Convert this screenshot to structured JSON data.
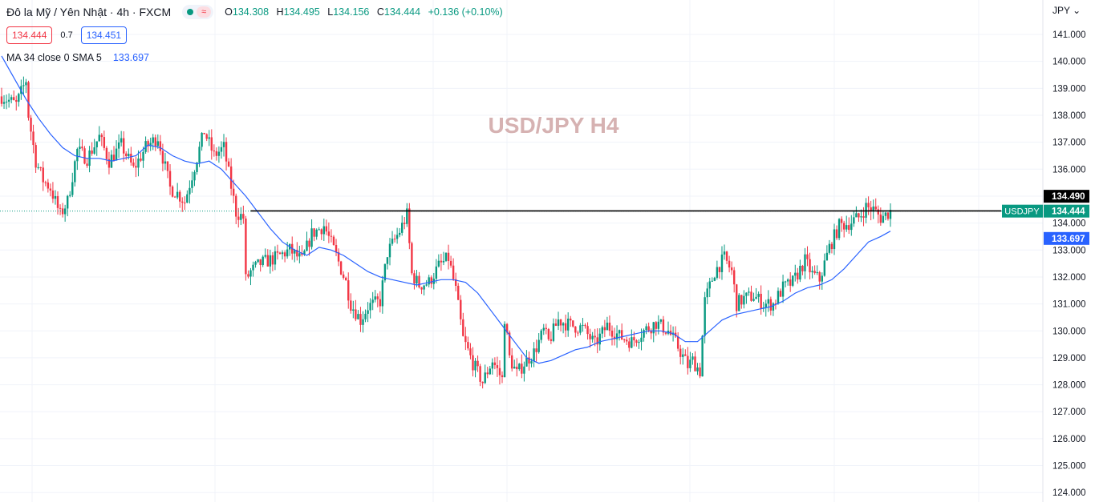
{
  "header": {
    "symbol_title": "Đô la Mỹ / Yên Nhật · 4h · FXCM",
    "delayed_glyph": "≈",
    "ohlc": {
      "o_label": "O",
      "o_value": "134.308",
      "h_label": "H",
      "h_value": "134.495",
      "l_label": "L",
      "l_value": "134.156",
      "c_label": "C",
      "c_value": "134.444",
      "change": "+0.136 (+0.10%)"
    },
    "sell_price": "134.444",
    "spread": "0.7",
    "buy_price": "134.451",
    "indicator_label": "MA 34 close 0 SMA 5",
    "indicator_value": "133.697",
    "currency": "JPY",
    "currency_chevron": "⌄"
  },
  "colors": {
    "up": "#089981",
    "down": "#f23645",
    "ma": "#2962ff",
    "grid": "#f0f3fa",
    "watermark": "#d6b2b2",
    "resistance": "#000000"
  },
  "chart_data": {
    "type": "candlestick",
    "title": "USD/JPY H4",
    "symbol": "USDJPY",
    "timeframe": "4h",
    "y_axis": {
      "side": "right",
      "ticks": [
        141,
        140,
        139,
        138,
        137,
        136,
        135,
        134,
        133,
        132,
        131,
        130,
        129,
        128,
        127,
        126,
        125,
        124
      ],
      "tick_labels": [
        "141.000",
        "140.000",
        "139.000",
        "138.000",
        "137.000",
        "136.000",
        "",
        "134.000",
        "133.000",
        "132.000",
        "131.000",
        "130.000",
        "129.000",
        "128.000",
        "127.000",
        "126.000",
        "125.000",
        "124.000"
      ],
      "range": [
        123.8,
        141.7
      ]
    },
    "grid": true,
    "resistance_level": 134.45,
    "bar_count": 275,
    "close_path": [
      [
        0,
        138.7
      ],
      [
        6,
        138.4
      ],
      [
        10,
        139.3
      ],
      [
        11,
        138.0
      ],
      [
        14,
        136.3
      ],
      [
        17,
        135.6
      ],
      [
        20,
        135.3
      ],
      [
        24,
        134.3
      ],
      [
        27,
        134.8
      ],
      [
        31,
        136.7
      ],
      [
        35,
        136.4
      ],
      [
        40,
        137.2
      ],
      [
        44,
        136.3
      ],
      [
        49,
        136.9
      ],
      [
        54,
        136.0
      ],
      [
        59,
        136.8
      ],
      [
        64,
        137.2
      ],
      [
        69,
        135.3
      ],
      [
        72,
        135.1
      ],
      [
        75,
        134.8
      ],
      [
        79,
        136.1
      ],
      [
        83,
        137.4
      ],
      [
        87,
        136.5
      ],
      [
        91,
        136.8
      ],
      [
        96,
        134.4
      ],
      [
        99,
        134.2
      ],
      [
        100,
        131.9
      ],
      [
        102,
        132.2
      ],
      [
        106,
        132.5
      ],
      [
        112,
        132.7
      ],
      [
        118,
        133.0
      ],
      [
        123,
        132.6
      ],
      [
        127,
        133.6
      ],
      [
        132,
        133.9
      ],
      [
        137,
        132.8
      ],
      [
        141,
        131.8
      ],
      [
        143,
        131.0
      ],
      [
        147,
        130.4
      ],
      [
        150,
        130.9
      ],
      [
        155,
        131.1
      ],
      [
        158,
        132.9
      ],
      [
        163,
        133.7
      ],
      [
        166,
        134.3
      ],
      [
        168,
        132.1
      ],
      [
        171,
        131.7
      ],
      [
        175,
        131.8
      ],
      [
        179,
        132.4
      ],
      [
        183,
        132.7
      ],
      [
        186,
        131.5
      ],
      [
        189,
        129.7
      ],
      [
        193,
        128.8
      ],
      [
        197,
        128.1
      ],
      [
        201,
        128.9
      ],
      [
        205,
        128.2
      ],
      [
        206,
        130.5
      ],
      [
        208,
        129.0
      ],
      [
        211,
        128.4
      ],
      [
        214,
        128.8
      ],
      [
        218,
        129.2
      ],
      [
        222,
        130.0
      ],
      [
        224,
        129.6
      ],
      [
        228,
        130.4
      ],
      [
        233,
        130.2
      ],
      [
        238,
        130.1
      ],
      [
        243,
        129.5
      ],
      [
        248,
        130.2
      ],
      [
        253,
        129.8
      ],
      [
        258,
        129.6
      ],
      [
        263,
        130.0
      ],
      [
        268,
        130.3
      ],
      [
        273,
        130.0
      ],
      [
        277,
        129.4
      ],
      [
        281,
        128.7
      ],
      [
        283,
        128.9
      ],
      [
        286,
        128.5
      ],
      [
        288,
        131.1
      ],
      [
        292,
        132.2
      ],
      [
        296,
        132.7
      ],
      [
        299,
        132.2
      ],
      [
        301,
        131.0
      ],
      [
        304,
        131.2
      ],
      [
        308,
        131.3
      ],
      [
        312,
        131.0
      ],
      [
        316,
        131.0
      ],
      [
        320,
        131.6
      ],
      [
        324,
        131.8
      ],
      [
        329,
        132.6
      ],
      [
        332,
        132.1
      ],
      [
        335,
        131.9
      ],
      [
        339,
        133.1
      ],
      [
        343,
        133.9
      ],
      [
        347,
        134.0
      ],
      [
        351,
        134.2
      ],
      [
        354,
        134.6
      ],
      [
        357,
        134.5
      ],
      [
        360,
        134.2
      ],
      [
        362,
        134.3
      ],
      [
        364,
        134.45
      ]
    ],
    "ma_path": [
      [
        0,
        140.2
      ],
      [
        5,
        139.4
      ],
      [
        10,
        138.6
      ],
      [
        15,
        137.9
      ],
      [
        20,
        137.3
      ],
      [
        25,
        136.8
      ],
      [
        30,
        136.5
      ],
      [
        35,
        136.4
      ],
      [
        40,
        136.4
      ],
      [
        45,
        136.3
      ],
      [
        50,
        136.4
      ],
      [
        55,
        136.5
      ],
      [
        60,
        136.9
      ],
      [
        65,
        136.8
      ],
      [
        70,
        136.5
      ],
      [
        75,
        136.3
      ],
      [
        80,
        136.2
      ],
      [
        85,
        136.3
      ],
      [
        90,
        136.0
      ],
      [
        95,
        135.5
      ],
      [
        100,
        135.0
      ],
      [
        105,
        134.4
      ],
      [
        110,
        133.8
      ],
      [
        115,
        133.3
      ],
      [
        120,
        133.0
      ],
      [
        125,
        132.8
      ],
      [
        130,
        133.1
      ],
      [
        135,
        133.0
      ],
      [
        140,
        132.8
      ],
      [
        145,
        132.5
      ],
      [
        150,
        132.2
      ],
      [
        155,
        132.0
      ],
      [
        160,
        131.9
      ],
      [
        165,
        131.8
      ],
      [
        170,
        131.7
      ],
      [
        175,
        131.8
      ],
      [
        180,
        131.9
      ],
      [
        185,
        131.9
      ],
      [
        190,
        131.8
      ],
      [
        195,
        131.4
      ],
      [
        200,
        130.8
      ],
      [
        205,
        130.2
      ],
      [
        210,
        129.6
      ],
      [
        215,
        129.0
      ],
      [
        220,
        128.8
      ],
      [
        225,
        128.9
      ],
      [
        230,
        129.1
      ],
      [
        235,
        129.3
      ],
      [
        240,
        129.4
      ],
      [
        245,
        129.6
      ],
      [
        250,
        129.7
      ],
      [
        255,
        129.8
      ],
      [
        260,
        129.9
      ],
      [
        265,
        130.0
      ],
      [
        270,
        130.0
      ],
      [
        275,
        129.9
      ],
      [
        280,
        129.6
      ],
      [
        285,
        129.6
      ],
      [
        290,
        130.0
      ],
      [
        295,
        130.4
      ],
      [
        300,
        130.6
      ],
      [
        305,
        130.7
      ],
      [
        310,
        130.8
      ],
      [
        315,
        130.9
      ],
      [
        320,
        131.1
      ],
      [
        325,
        131.4
      ],
      [
        330,
        131.6
      ],
      [
        335,
        131.7
      ],
      [
        340,
        131.9
      ],
      [
        345,
        132.3
      ],
      [
        350,
        132.8
      ],
      [
        355,
        133.3
      ],
      [
        360,
        133.5
      ],
      [
        364,
        133.7
      ]
    ],
    "price_labels": [
      {
        "text": "134.490",
        "value": 134.49,
        "style": "high"
      },
      {
        "text": "134.444",
        "value": 134.444,
        "style": "last"
      },
      {
        "text": "133.697",
        "value": 133.697,
        "style": "ma"
      }
    ],
    "symbol_label": "USDJPY"
  }
}
